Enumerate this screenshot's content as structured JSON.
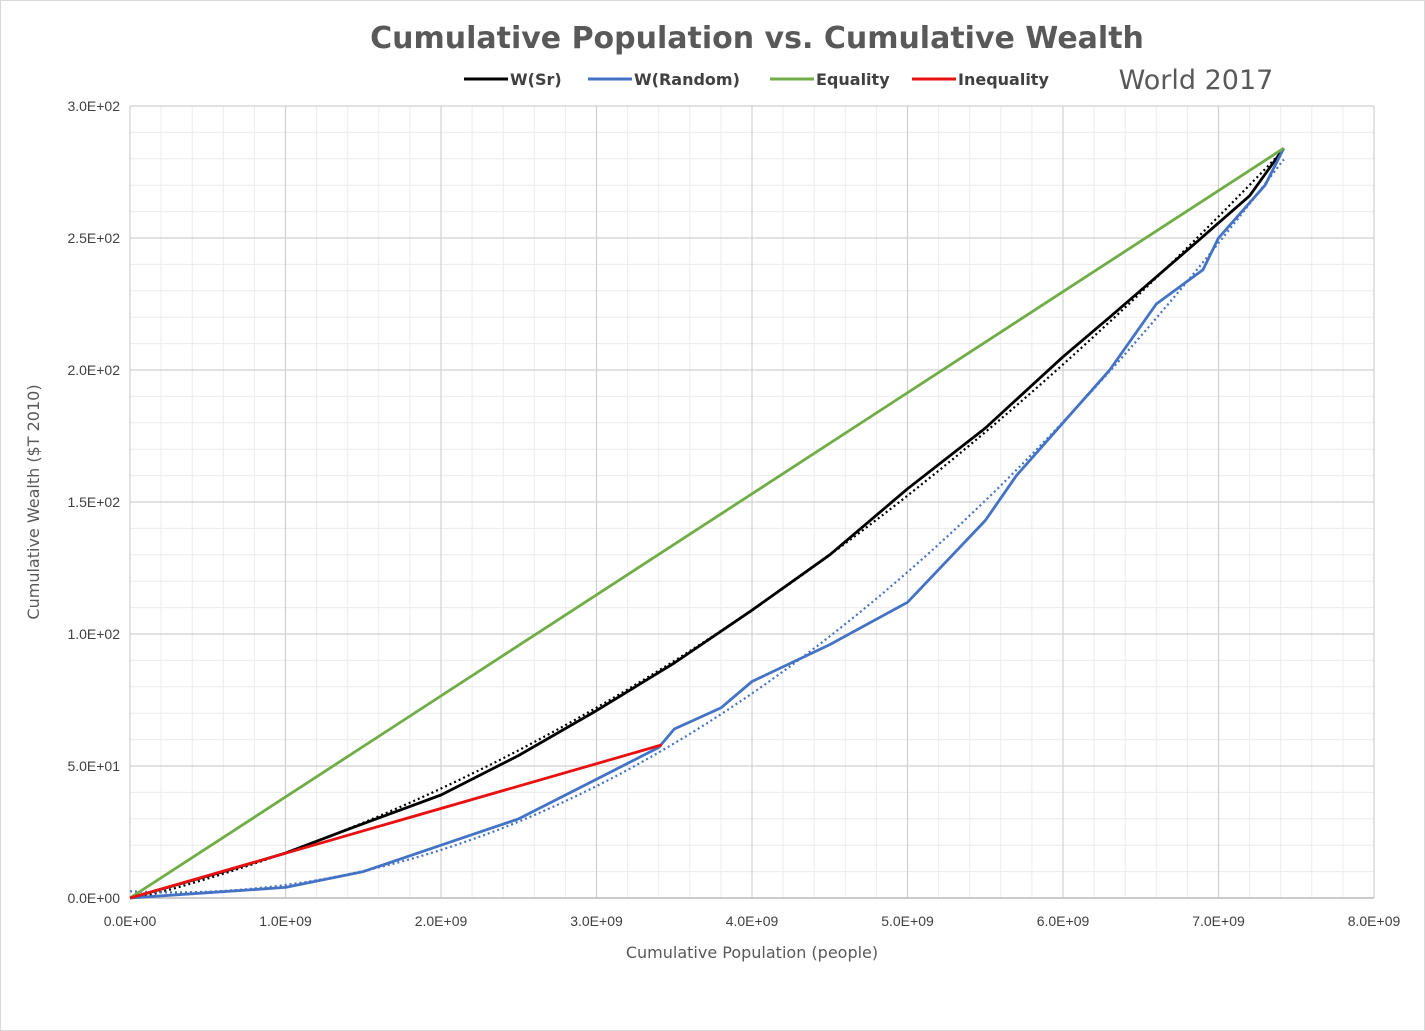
{
  "chart_data": {
    "type": "line",
    "title": "Cumulative Population vs. Cumulative Wealth",
    "subtitle": "World 2017",
    "xlabel": "Cumulative Population (people)",
    "ylabel": "Cumulative Wealth ($T 2010)",
    "xlim": [
      0,
      8000000000
    ],
    "ylim": [
      0,
      300
    ],
    "x_ticks": [
      0,
      1000000000,
      2000000000,
      3000000000,
      4000000000,
      5000000000,
      6000000000,
      7000000000,
      8000000000
    ],
    "x_tick_labels": [
      "0.0E+00",
      "1.0E+09",
      "2.0E+09",
      "3.0E+09",
      "4.0E+09",
      "5.0E+09",
      "6.0E+09",
      "7.0E+09",
      "8.0E+09"
    ],
    "y_ticks": [
      0,
      50,
      100,
      150,
      200,
      250,
      300
    ],
    "y_tick_labels": [
      "0.0E+00",
      "5.0E+01",
      "1.0E+02",
      "1.5E+02",
      "2.0E+02",
      "2.5E+02",
      "3.0E+02"
    ],
    "grid": true,
    "legend_position": "top",
    "series": [
      {
        "name": "W(Sr)",
        "color": "#000000",
        "trendline": true,
        "x": [
          0,
          300000000,
          600000000,
          1000000000,
          1400000000,
          2000000000,
          2500000000,
          3000000000,
          3500000000,
          4000000000,
          4500000000,
          5000000000,
          5500000000,
          6000000000,
          6300000000,
          6850000000,
          7200000000,
          7420000000
        ],
        "y": [
          0,
          5,
          10,
          17,
          26,
          39,
          54,
          71,
          89,
          109,
          130,
          155,
          178,
          205,
          220,
          248,
          266,
          284
        ]
      },
      {
        "name": "W(Random)",
        "color": "#4472c4",
        "trendline": true,
        "x": [
          0,
          500000000,
          1000000000,
          1500000000,
          2000000000,
          2500000000,
          3000000000,
          3400000000,
          3500000000,
          3800000000,
          4000000000,
          4500000000,
          5000000000,
          5500000000,
          5700000000,
          6000000000,
          6300000000,
          6600000000,
          6900000000,
          7000000000,
          7300000000,
          7420000000
        ],
        "y": [
          0,
          2,
          4,
          10,
          20,
          30,
          45,
          57,
          64,
          72,
          82,
          96,
          112,
          143,
          160,
          180,
          200,
          225,
          238,
          250,
          270,
          284
        ]
      },
      {
        "name": "Equality",
        "color": "#70ad47",
        "trendline": false,
        "x": [
          0,
          7420000000
        ],
        "y": [
          0,
          284
        ]
      },
      {
        "name": "Inequality",
        "color": "#e81010",
        "trendline": false,
        "x": [
          0,
          3420000000
        ],
        "y": [
          0,
          58
        ]
      }
    ]
  }
}
